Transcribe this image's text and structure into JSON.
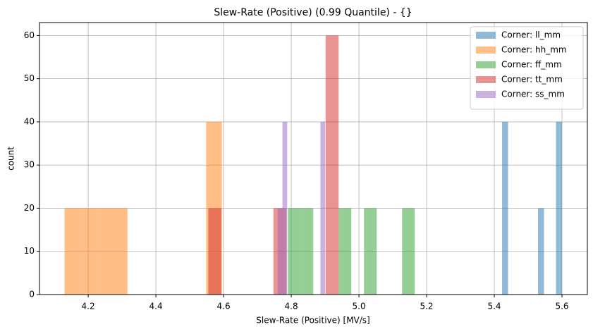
{
  "chart_data": {
    "type": "histogram",
    "title": "Slew-Rate (Positive) (0.99 Quantile) - {}",
    "x_label": "Slew-Rate (Positive) [MV/s]",
    "y_label": "count",
    "series": [
      {
        "name": "Corner: ll_mm",
        "color": "#1f77b4",
        "bins": [
          5.423,
          5.4407,
          5.4584,
          5.4761,
          5.4938,
          5.5115,
          5.5292,
          5.5469,
          5.5646,
          5.5823,
          5.6
        ],
        "values": [
          40,
          0,
          0,
          0,
          0,
          0,
          20,
          0,
          0,
          40
        ]
      },
      {
        "name": "Corner: hh_mm",
        "color": "#ff7f0e",
        "bins": [
          4.13,
          4.1765,
          4.223,
          4.2695,
          4.316,
          4.3625,
          4.409,
          4.4555,
          4.502,
          4.5485,
          4.595
        ],
        "values": [
          20,
          20,
          20,
          20,
          0,
          0,
          0,
          0,
          0,
          40
        ]
      },
      {
        "name": "Corner: ff_mm",
        "color": "#2ca02c",
        "bins": [
          4.79,
          4.8275,
          4.865,
          4.9025,
          4.94,
          4.9775,
          5.015,
          5.0525,
          5.09,
          5.1275,
          5.165
        ],
        "values": [
          20,
          20,
          0,
          0,
          20,
          0,
          20,
          0,
          0,
          20
        ]
      },
      {
        "name": "Corner: tt_mm",
        "color": "#d62728",
        "bins": [
          4.555,
          4.5935,
          4.632,
          4.6705,
          4.709,
          4.7475,
          4.786,
          4.8245,
          4.863,
          4.9015,
          4.94
        ],
        "values": [
          20,
          0,
          0,
          0,
          0,
          20,
          0,
          0,
          0,
          60
        ]
      },
      {
        "name": "Corner: ss_mm",
        "color": "#9467bd",
        "bins": [
          4.76,
          4.774,
          4.788,
          4.802,
          4.816,
          4.83,
          4.844,
          4.858,
          4.872,
          4.886,
          4.9
        ],
        "values": [
          20,
          40,
          0,
          0,
          0,
          0,
          0,
          0,
          0,
          40
        ]
      }
    ],
    "opacity": 0.5,
    "xlim": [
      4.056,
      5.675
    ],
    "xticks": [
      4.2,
      4.4,
      4.6,
      4.8,
      {
        "value": 5,
        "label": "5.0"
      },
      5.2,
      5.4,
      5.6
    ],
    "ylim": [
      0,
      63
    ],
    "yticks": [
      0,
      10,
      20,
      30,
      40,
      50,
      60
    ],
    "grid": true,
    "legend": "upper right"
  }
}
